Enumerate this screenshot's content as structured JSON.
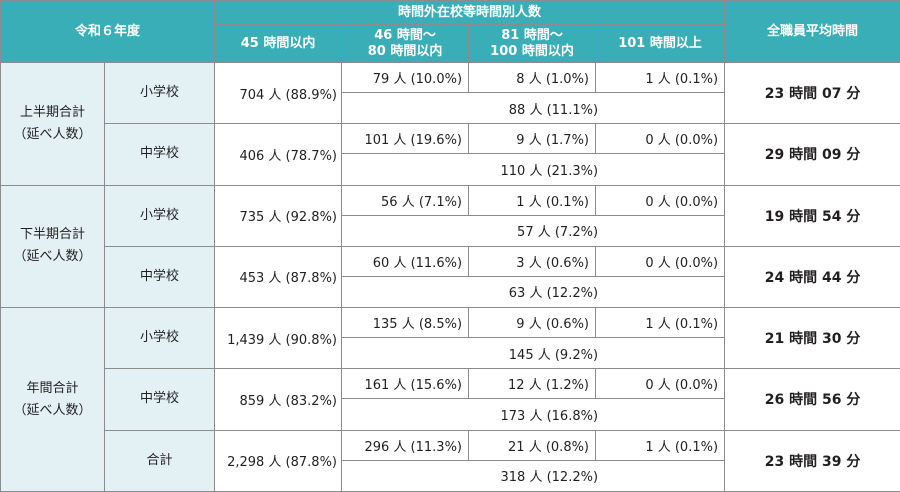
{
  "header": {
    "period_col": "令和６年度",
    "overtime_group": "時間外在校等時間別人数",
    "col_45": "45 時間以内",
    "col_46_80_line1": "46 時間〜",
    "col_46_80_line2": "80 時間以内",
    "col_81_100_line1": "81 時間〜",
    "col_81_100_line2": "100 時間以内",
    "col_101": "101 時間以上",
    "avg_col": "全職員平均時間"
  },
  "groups": [
    {
      "label_line1": "上半期合計",
      "label_line2": "（延べ人数）",
      "rows": [
        {
          "school": "小学校",
          "within45": "704 人 (88.9%)",
          "h46_80": "79 人 (10.0%)",
          "h81_100": "8 人 (1.0%)",
          "h101": "1 人 (0.1%)",
          "over45_total": "88 人 (11.1%)",
          "avg": "23 時間 07 分"
        },
        {
          "school": "中学校",
          "within45": "406 人 (78.7%)",
          "h46_80": "101 人 (19.6%)",
          "h81_100": "9 人 (1.7%)",
          "h101": "0 人 (0.0%)",
          "over45_total": "110 人 (21.3%)",
          "avg": "29 時間 09 分"
        }
      ]
    },
    {
      "label_line1": "下半期合計",
      "label_line2": "（延べ人数）",
      "rows": [
        {
          "school": "小学校",
          "within45": "735 人 (92.8%)",
          "h46_80": "56 人 (7.1%)",
          "h81_100": "1 人 (0.1%)",
          "h101": "0 人 (0.0%)",
          "over45_total": "57 人 (7.2%)",
          "avg": "19 時間 54 分"
        },
        {
          "school": "中学校",
          "within45": "453 人 (87.8%)",
          "h46_80": "60 人 (11.6%)",
          "h81_100": "3 人 (0.6%)",
          "h101": "0 人 (0.0%)",
          "over45_total": "63 人 (12.2%)",
          "avg": "24 時間 44 分"
        }
      ]
    },
    {
      "label_line1": "年間合計",
      "label_line2": "（延べ人数）",
      "rows": [
        {
          "school": "小学校",
          "within45": "1,439 人 (90.8%)",
          "h46_80": "135 人 (8.5%)",
          "h81_100": "9 人 (0.6%)",
          "h101": "1 人 (0.1%)",
          "over45_total": "145 人 (9.2%)",
          "avg": "21 時間 30 分"
        },
        {
          "school": "中学校",
          "within45": "859 人 (83.2%)",
          "h46_80": "161 人 (15.6%)",
          "h81_100": "12 人 (1.2%)",
          "h101": "0 人 (0.0%)",
          "over45_total": "173 人 (16.8%)",
          "avg": "26 時間 56 分"
        },
        {
          "school": "合計",
          "within45": "2,298 人 (87.8%)",
          "h46_80": "296 人 (11.3%)",
          "h81_100": "21 人 (0.8%)",
          "h101": "1 人 (0.1%)",
          "over45_total": "318 人 (12.2%)",
          "avg": "23 時間 39 分"
        }
      ]
    }
  ]
}
